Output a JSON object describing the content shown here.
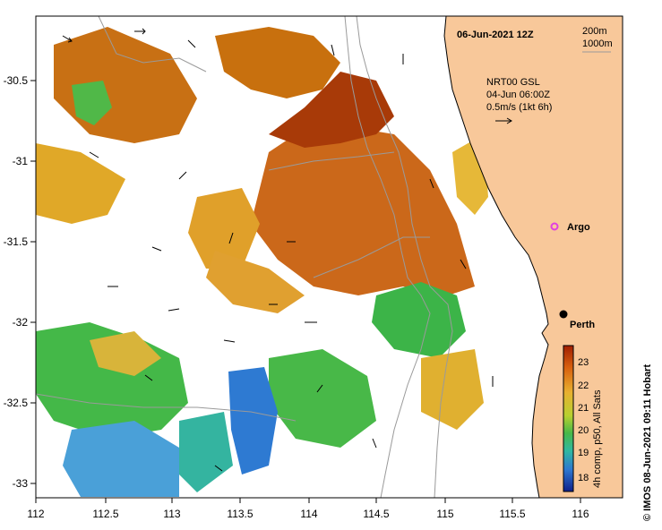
{
  "map": {
    "date_title": "06-Jun-2021 12Z",
    "depth_legend": [
      "200m",
      "1000m"
    ],
    "current_info": [
      "NRT00 GSL",
      "04-Jun 06:00Z",
      "0.5m/s (1kt 6h)"
    ],
    "lon_ticks": [
      "112",
      "112.5",
      "113",
      "113.5",
      "114",
      "114.5",
      "115",
      "115.5",
      "116"
    ],
    "lat_ticks": [
      "-30.5",
      "-31",
      "-31.5",
      "-32",
      "-32.5",
      "-33"
    ],
    "places": {
      "argo": "Argo",
      "perth": "Perth"
    },
    "colorbar": {
      "ticks": [
        "23",
        "22",
        "21",
        "20",
        "19",
        "18"
      ],
      "caption": "4h comp, p50, All Sats"
    },
    "credit": "© IMOS 08-Jun-2021 09:11 Hobart",
    "colors": {
      "land": "#f8c89a",
      "warm": "#c8580a",
      "mid": "#e8b030",
      "cool": "#4cb848",
      "cold": "#2e78d0",
      "argo_marker": "#e040e0"
    }
  }
}
